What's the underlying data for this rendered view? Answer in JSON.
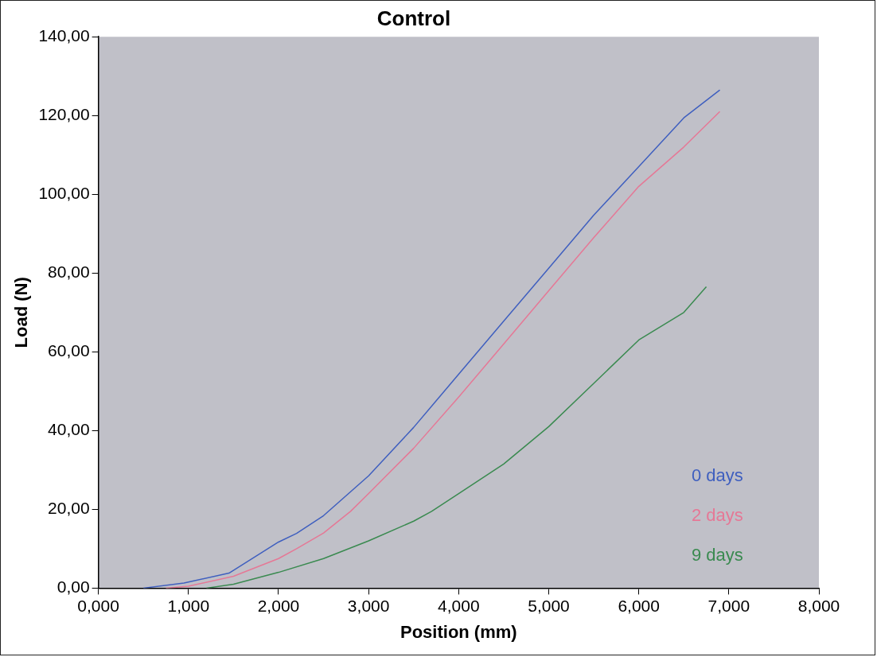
{
  "chart_data": {
    "type": "line",
    "title": "Control",
    "xlabel": "Position (mm)",
    "ylabel": "Load (N)",
    "xlim": [
      0,
      8
    ],
    "ylim": [
      0,
      140
    ],
    "xticks": [
      {
        "value": 0,
        "label": "0,000"
      },
      {
        "value": 1,
        "label": "1,000"
      },
      {
        "value": 2,
        "label": "2,000"
      },
      {
        "value": 3,
        "label": "3,000"
      },
      {
        "value": 4,
        "label": "4,000"
      },
      {
        "value": 5,
        "label": "5,000"
      },
      {
        "value": 6,
        "label": "6,000"
      },
      {
        "value": 7,
        "label": "7,000"
      },
      {
        "value": 8,
        "label": "8,000"
      }
    ],
    "yticks": [
      {
        "value": 0,
        "label": "0,00"
      },
      {
        "value": 20,
        "label": "20,00"
      },
      {
        "value": 40,
        "label": "40,00"
      },
      {
        "value": 60,
        "label": "60,00"
      },
      {
        "value": 80,
        "label": "80,00"
      },
      {
        "value": 100,
        "label": "100,00"
      },
      {
        "value": 120,
        "label": "120,00"
      },
      {
        "value": 140,
        "label": "140,00"
      }
    ],
    "grid": false,
    "legend": "bottom right",
    "marker": "none",
    "line_style": "solid",
    "series": [
      {
        "name": "0 days",
        "color": "#3f5fbf",
        "x": [
          0.5,
          0.95,
          1.45,
          2,
          2.2,
          2.5,
          3,
          3.5,
          4,
          4.5,
          5,
          5.5,
          6,
          6.5,
          6.9
        ],
        "values": [
          0,
          1.3,
          3.8,
          11.7,
          13.9,
          18.4,
          28.5,
          40.8,
          54.3,
          67.8,
          81.2,
          94.7,
          107,
          119.4,
          126.5
        ]
      },
      {
        "name": "2 days",
        "color": "#e57896",
        "x": [
          0.75,
          1,
          1.5,
          2,
          2.2,
          2.5,
          2.8,
          3,
          3.5,
          4,
          4.5,
          5,
          5.5,
          6,
          6.5,
          6.9
        ],
        "values": [
          0,
          0.5,
          3,
          7.5,
          10,
          14,
          19.5,
          24,
          35.5,
          48.5,
          62,
          75.5,
          89,
          102,
          112,
          121
        ]
      },
      {
        "name": "9 days",
        "color": "#3a8a50",
        "x": [
          1.2,
          1.5,
          2,
          2.5,
          3,
          3.5,
          3.7,
          4,
          4.5,
          5,
          5.5,
          6,
          6.5,
          6.75
        ],
        "values": [
          0,
          1,
          4,
          7.5,
          12,
          17,
          19.5,
          24,
          31.5,
          41,
          52,
          63,
          70,
          76.5
        ]
      }
    ]
  }
}
